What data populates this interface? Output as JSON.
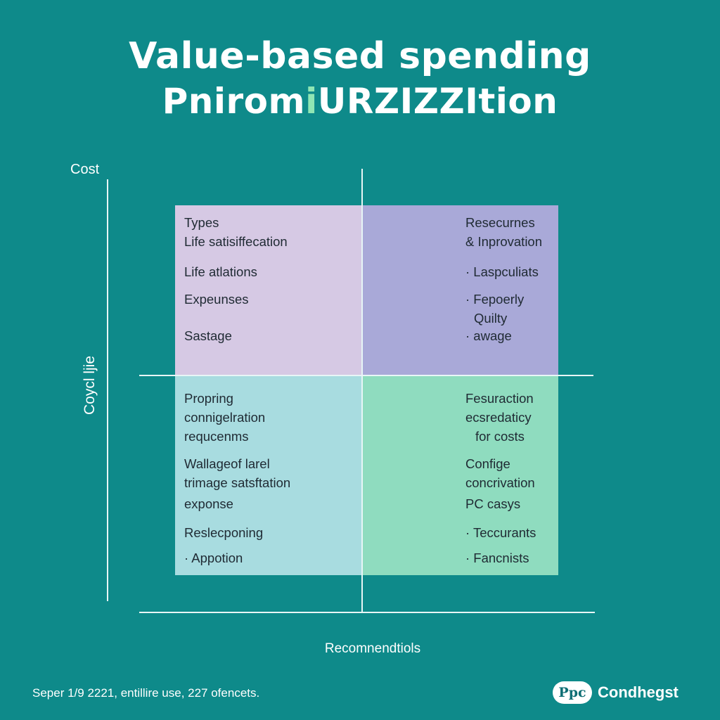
{
  "title": {
    "line1": "Value-based spending",
    "line2_prefix": "Pnirom",
    "line2_accent": "i",
    "line2_suffix": "URZIZZItion"
  },
  "axes": {
    "top_label": "Cost",
    "left_label": "Coycl ljie",
    "bottom_label": "Recomnendtiols"
  },
  "quadrants": {
    "top_left": [
      "Types",
      "Life satisiffecation",
      "Life atlations",
      "Expeunses",
      "Sastage"
    ],
    "top_right": [
      "Resecurnes",
      "& Inprovation",
      "· Laspculiats",
      "· Fepoerly",
      "Quilty",
      "· awage"
    ],
    "bottom_left": [
      "Propring",
      "connigelration",
      "requcenms",
      "Wallageof larel",
      "trimage satsftation",
      "exponse",
      "Reslecponing",
      "· Appotion"
    ],
    "bottom_right": [
      "Fesuraction",
      "ecsredaticy",
      "for costs",
      "Confige",
      "concrivation",
      "PC casys",
      "· Teccurants",
      "· Fancnists"
    ]
  },
  "colors": {
    "background": "#0e8a8a",
    "quadrant_top_left": "#d6c9e4",
    "quadrant_top_right": "#a9a9d8",
    "quadrant_bottom_left": "#a8dce0",
    "quadrant_bottom_right": "#8fdcbf",
    "title_accent": "#8fe6b4"
  },
  "footer": {
    "left_text": "Seper 1/9 2221, entillire use, 227 ofencets.",
    "logo_badge": "Ppc",
    "logo_name": "Condhegst"
  }
}
